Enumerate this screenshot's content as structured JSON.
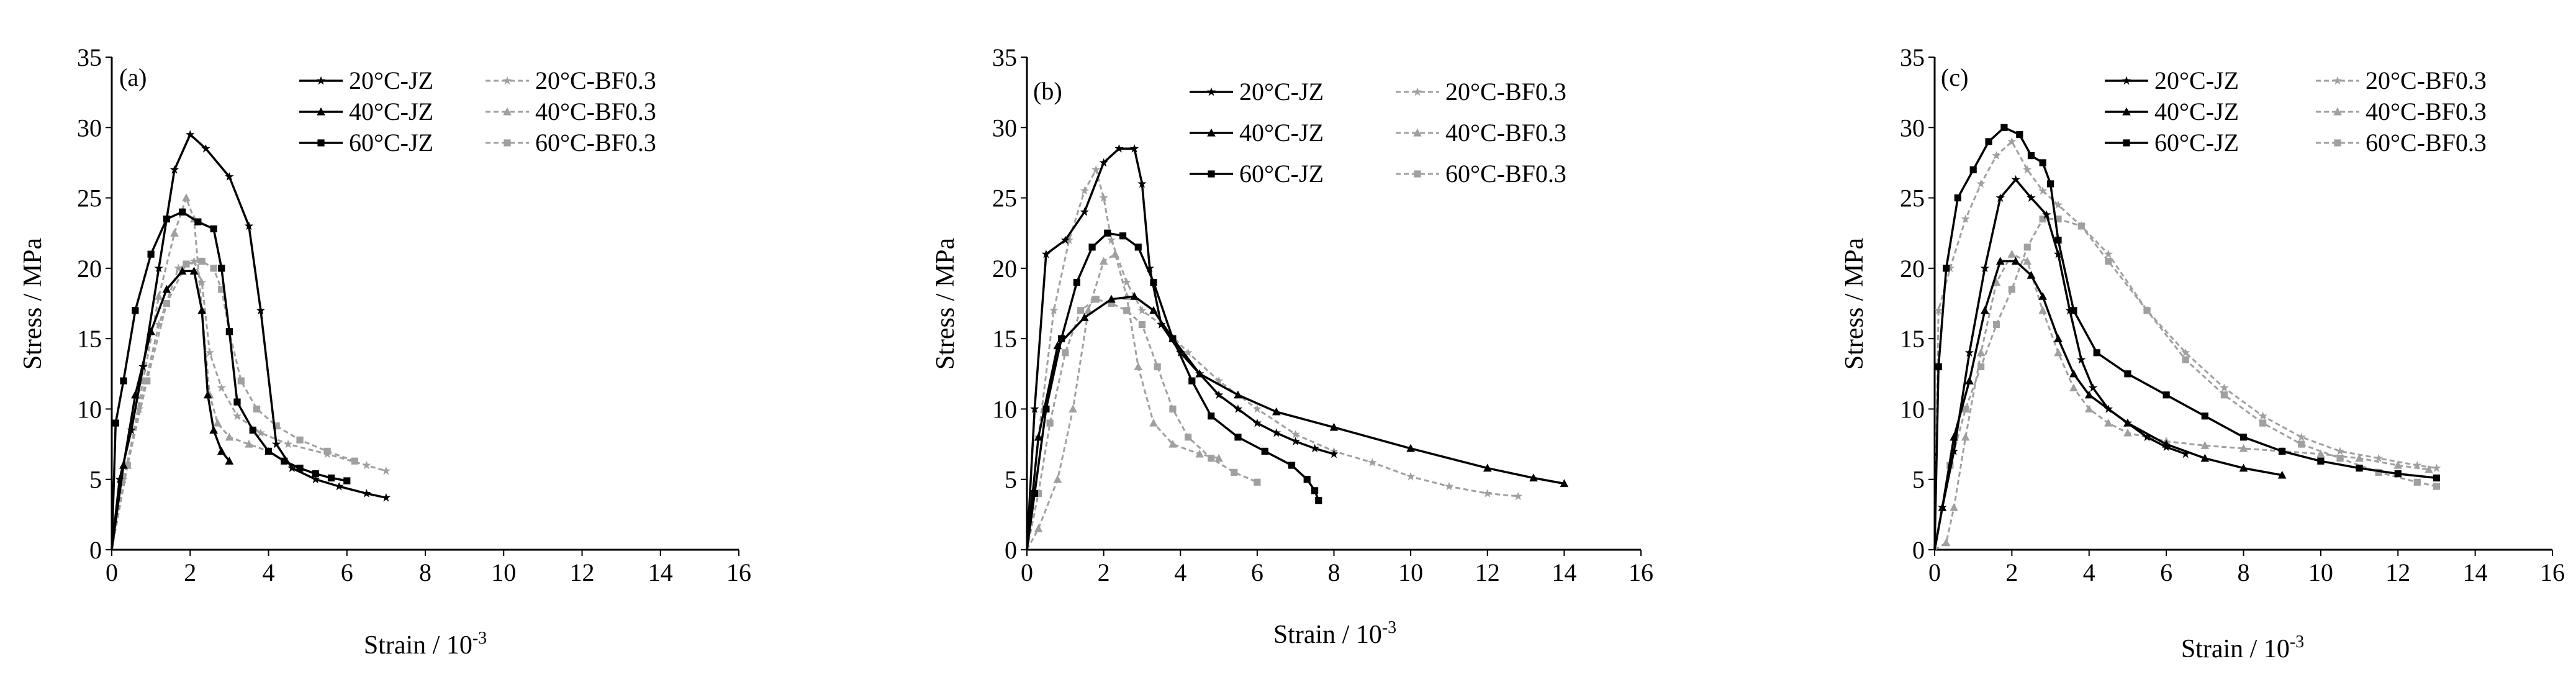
{
  "figure": {
    "colors": {
      "jz": "#000000",
      "bf": "#a0a0a0"
    }
  },
  "chart_data": [
    {
      "type": "line",
      "panel_label": "(a)",
      "xlabel": "Strain / 10",
      "xlabel_sup": "-3",
      "ylabel": "Stress / MPa",
      "xlim": [
        0,
        16
      ],
      "ylim": [
        0,
        35
      ],
      "xticks": [
        "0",
        "2",
        "4",
        "6",
        "8",
        "10",
        "12",
        "14",
        "16"
      ],
      "yticks": [
        "0",
        "5",
        "10",
        "15",
        "20",
        "25",
        "30",
        "35"
      ],
      "series": [
        {
          "name": "20°C-JZ",
          "style": "jz",
          "marker": "star",
          "x": [
            0,
            0.2,
            0.5,
            0.8,
            1.2,
            1.6,
            2.0,
            2.4,
            3.0,
            3.5,
            3.8,
            4.2,
            4.6,
            5.2,
            5.8,
            6.5,
            7.0
          ],
          "y": [
            0,
            5,
            8.5,
            13,
            20,
            27,
            29.5,
            28.5,
            26.5,
            23,
            17,
            7.5,
            5.8,
            5,
            4.5,
            4,
            3.7
          ]
        },
        {
          "name": "40°C-JZ",
          "style": "jz",
          "marker": "triangle",
          "x": [
            0,
            0.3,
            0.6,
            1.0,
            1.4,
            1.8,
            2.1,
            2.3,
            2.45,
            2.6,
            2.8,
            3.0
          ],
          "y": [
            0,
            6,
            11,
            15.5,
            18.5,
            19.8,
            19.8,
            17,
            11,
            8.5,
            7,
            6.3
          ]
        },
        {
          "name": "60°C-JZ",
          "style": "jz",
          "marker": "square",
          "x": [
            0,
            0.1,
            0.3,
            0.6,
            1.0,
            1.4,
            1.8,
            2.2,
            2.6,
            2.8,
            3.0,
            3.2,
            3.6,
            4.0,
            4.4,
            4.8,
            5.2,
            5.6,
            6.0
          ],
          "y": [
            0,
            9,
            12,
            17,
            21,
            23.5,
            24,
            23.3,
            22.8,
            20,
            15.5,
            10.5,
            8.5,
            7,
            6.3,
            5.8,
            5.4,
            5.1,
            4.9
          ]
        },
        {
          "name": "20°C-BF0.3",
          "style": "bf",
          "marker": "star",
          "x": [
            0,
            0.3,
            0.7,
            1.2,
            1.7,
            2.1,
            2.3,
            2.5,
            2.8,
            3.2,
            3.8,
            4.5,
            5.5,
            6.5,
            7.0
          ],
          "y": [
            0,
            5,
            10,
            16,
            20,
            20.5,
            19,
            14,
            11.5,
            9.5,
            8.3,
            7.5,
            6.8,
            6,
            5.6
          ]
        },
        {
          "name": "40°C-BF0.3",
          "style": "bf",
          "marker": "triangle",
          "x": [
            0,
            0.4,
            0.8,
            1.2,
            1.6,
            1.9,
            2.1,
            2.3,
            2.5,
            2.7,
            3.0,
            3.5,
            4.0
          ],
          "y": [
            0,
            6,
            12,
            18,
            22.5,
            25,
            23.5,
            17,
            11,
            9,
            8,
            7.5,
            7
          ]
        },
        {
          "name": "60°C-BF0.3",
          "style": "bf",
          "marker": "square",
          "x": [
            0,
            0.4,
            0.9,
            1.4,
            1.9,
            2.3,
            2.6,
            2.8,
            3.0,
            3.3,
            3.7,
            4.2,
            4.8,
            5.5,
            6.2
          ],
          "y": [
            0,
            6,
            12,
            17.5,
            20.3,
            20.5,
            20,
            18.5,
            15.5,
            12,
            10,
            8.8,
            7.8,
            7,
            6.3
          ]
        }
      ]
    },
    {
      "type": "line",
      "panel_label": "(b)",
      "xlabel": "Strain / 10",
      "xlabel_sup": "-3",
      "ylabel": "Stress / MPa",
      "xlim": [
        0,
        16
      ],
      "ylim": [
        0,
        35
      ],
      "xticks": [
        "0",
        "2",
        "4",
        "6",
        "8",
        "10",
        "12",
        "14",
        "16"
      ],
      "yticks": [
        "0",
        "5",
        "10",
        "15",
        "20",
        "25",
        "30",
        "35"
      ],
      "series": [
        {
          "name": "20°C-JZ",
          "style": "jz",
          "marker": "star",
          "x": [
            0,
            0.2,
            0.5,
            1.0,
            1.5,
            2.0,
            2.4,
            2.8,
            3.0,
            3.2,
            3.5,
            4.0,
            4.5,
            5.0,
            5.5,
            6.0,
            6.5,
            7.0,
            7.5,
            8.0
          ],
          "y": [
            0,
            10,
            21,
            22,
            24,
            27.5,
            28.5,
            28.5,
            26,
            20,
            16,
            14,
            12.5,
            11,
            10,
            9,
            8.3,
            7.7,
            7.2,
            6.8
          ]
        },
        {
          "name": "40°C-JZ",
          "style": "jz",
          "marker": "triangle",
          "x": [
            0,
            0.3,
            0.8,
            1.5,
            2.2,
            2.8,
            3.3,
            3.8,
            4.5,
            5.5,
            6.5,
            8.0,
            10.0,
            12.0,
            13.2,
            14.0
          ],
          "y": [
            0,
            8,
            14.5,
            16.5,
            17.8,
            18,
            17,
            15,
            12.5,
            11,
            9.8,
            8.7,
            7.2,
            5.8,
            5.1,
            4.7
          ]
        },
        {
          "name": "60°C-JZ",
          "style": "jz",
          "marker": "square",
          "x": [
            0,
            0.2,
            0.5,
            0.9,
            1.3,
            1.7,
            2.1,
            2.5,
            2.9,
            3.3,
            3.8,
            4.3,
            4.8,
            5.5,
            6.2,
            6.9,
            7.3,
            7.5,
            7.6
          ],
          "y": [
            0,
            4,
            10,
            15,
            19,
            21.5,
            22.5,
            22.3,
            21.5,
            19,
            15,
            12,
            9.5,
            8,
            7,
            6,
            5,
            4.2,
            3.5
          ]
        },
        {
          "name": "20°C-BF0.3",
          "style": "bf",
          "marker": "star",
          "x": [
            0,
            0.3,
            0.7,
            1.1,
            1.5,
            1.8,
            2.0,
            2.2,
            2.6,
            3.0,
            3.5,
            4.2,
            5.0,
            6.0,
            7.0,
            8.0,
            9.0,
            10.0,
            11.0,
            12.0,
            12.8
          ],
          "y": [
            0,
            8,
            17,
            22,
            25.5,
            27,
            25,
            22,
            19,
            17,
            16,
            14,
            12,
            10,
            8.2,
            7,
            6.2,
            5.2,
            4.5,
            4,
            3.8
          ]
        },
        {
          "name": "40°C-BF0.3",
          "style": "bf",
          "marker": "triangle",
          "x": [
            0,
            0.3,
            0.8,
            1.2,
            1.6,
            2.0,
            2.3,
            2.6,
            2.9,
            3.3,
            3.8,
            4.5,
            5.0
          ],
          "y": [
            0,
            1.5,
            5,
            10,
            17,
            20.5,
            21,
            18,
            13,
            9,
            7.5,
            6.8,
            6.5
          ]
        },
        {
          "name": "60°C-BF0.3",
          "style": "bf",
          "marker": "square",
          "x": [
            0,
            0.3,
            0.6,
            1.0,
            1.4,
            1.8,
            2.2,
            2.6,
            3.0,
            3.4,
            3.8,
            4.2,
            4.8,
            5.4,
            6.0
          ],
          "y": [
            0,
            4,
            9,
            14,
            17,
            17.8,
            17.5,
            17,
            16,
            13,
            10,
            8,
            6.5,
            5.5,
            4.8
          ]
        }
      ]
    },
    {
      "type": "line",
      "panel_label": "(c)",
      "xlabel": "Strain / 10",
      "xlabel_sup": "-3",
      "ylabel": "Stress / MPa",
      "xlim": [
        0,
        16
      ],
      "ylim": [
        0,
        35
      ],
      "xticks": [
        "0",
        "2",
        "4",
        "6",
        "8",
        "10",
        "12",
        "14",
        "16"
      ],
      "yticks": [
        "0",
        "5",
        "10",
        "15",
        "20",
        "25",
        "30",
        "35"
      ],
      "series": [
        {
          "name": "20°C-JZ",
          "style": "jz",
          "marker": "star",
          "x": [
            0,
            0.2,
            0.5,
            0.9,
            1.3,
            1.7,
            2.1,
            2.5,
            2.9,
            3.2,
            3.5,
            3.8,
            4.1,
            4.5,
            5.0,
            5.5,
            6.0,
            6.5
          ],
          "y": [
            0,
            3,
            7,
            14,
            20,
            25,
            26.3,
            25,
            23.8,
            21,
            17,
            13.5,
            11.5,
            10,
            9,
            8,
            7.3,
            6.8
          ]
        },
        {
          "name": "40°C-JZ",
          "style": "jz",
          "marker": "triangle",
          "x": [
            0,
            0.2,
            0.5,
            0.9,
            1.3,
            1.7,
            2.1,
            2.5,
            2.8,
            3.2,
            3.6,
            4.0,
            5.0,
            6.0,
            7.0,
            8.0,
            9.0
          ],
          "y": [
            0,
            3,
            8,
            12,
            17,
            20.5,
            20.5,
            19.5,
            18,
            15,
            12.5,
            11,
            9,
            7.5,
            6.5,
            5.8,
            5.3
          ]
        },
        {
          "name": "60°C-JZ",
          "style": "jz",
          "marker": "square",
          "x": [
            0,
            0.1,
            0.3,
            0.6,
            1.0,
            1.4,
            1.8,
            2.2,
            2.5,
            2.8,
            3.0,
            3.2,
            3.6,
            4.2,
            5.0,
            6.0,
            7.0,
            8.0,
            9.0,
            10.0,
            11.0,
            12.0,
            13.0
          ],
          "y": [
            0,
            13,
            20,
            25,
            27,
            29,
            30,
            29.5,
            28,
            27.5,
            26,
            22,
            17,
            14,
            12.5,
            11,
            9.5,
            8,
            7,
            6.3,
            5.8,
            5.4,
            5.1
          ]
        },
        {
          "name": "20°C-BF0.3",
          "style": "bf",
          "marker": "star",
          "x": [
            0,
            0.1,
            0.4,
            0.8,
            1.2,
            1.6,
            2.0,
            2.4,
            2.8,
            3.2,
            3.8,
            4.5,
            5.5,
            6.5,
            7.5,
            8.5,
            9.5,
            10.5,
            11.5,
            12.5,
            13.0
          ],
          "y": [
            0,
            17,
            20,
            23.5,
            26,
            28,
            29,
            27,
            25.5,
            24.5,
            23,
            21,
            17,
            14,
            11.5,
            9.5,
            8,
            7,
            6.5,
            6,
            5.8
          ]
        },
        {
          "name": "40°C-BF0.3",
          "style": "bf",
          "marker": "triangle",
          "x": [
            0,
            0.3,
            0.5,
            0.8,
            1.2,
            1.6,
            2.0,
            2.4,
            2.8,
            3.2,
            3.6,
            4.0,
            4.5,
            5.0,
            6.0,
            7.0,
            8.0,
            9.0,
            10.0,
            11.0,
            12.0,
            12.8
          ],
          "y": [
            0,
            0.5,
            3,
            8,
            14,
            19,
            21,
            20.5,
            17,
            14,
            11.5,
            10,
            9,
            8.3,
            7.7,
            7.4,
            7.2,
            7,
            6.8,
            6.5,
            6,
            5.7
          ]
        },
        {
          "name": "60°C-BF0.3",
          "style": "bf",
          "marker": "square",
          "x": [
            0,
            0.4,
            0.8,
            1.2,
            1.6,
            2.0,
            2.4,
            2.8,
            3.2,
            3.8,
            4.5,
            5.5,
            6.5,
            7.5,
            8.5,
            9.5,
            10.5,
            11.5,
            12.5,
            13.0
          ],
          "y": [
            0,
            6,
            10,
            13,
            16,
            18.5,
            21.5,
            23.5,
            23.5,
            23,
            20.5,
            17,
            13.5,
            11,
            9,
            7.5,
            6.5,
            5.5,
            4.8,
            4.5
          ]
        }
      ]
    }
  ]
}
